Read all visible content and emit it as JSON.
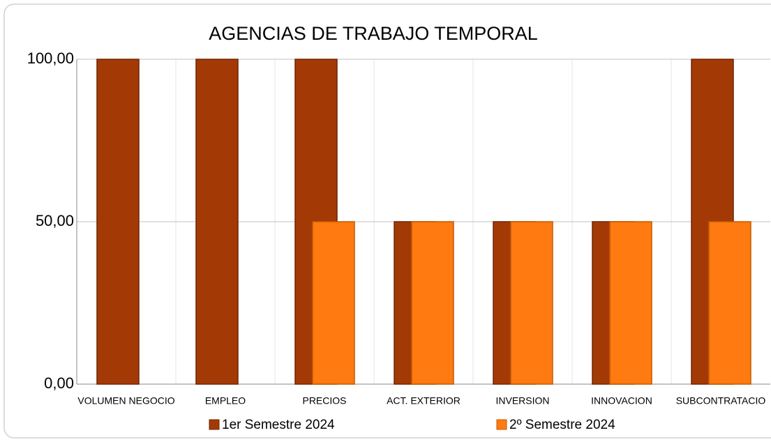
{
  "chart_data": {
    "type": "bar",
    "title": "AGENCIAS DE TRABAJO TEMPORAL",
    "categories": [
      "VOLUMEN NEGOCIO",
      "EMPLEO",
      "PRECIOS",
      "ACT. EXTERIOR",
      "INVERSION",
      "INNOVACION",
      "SUBCONTRATACIO"
    ],
    "series": [
      {
        "name": "1er Semestre 2024",
        "color": "#a33a06",
        "values": [
          100,
          100,
          100,
          50,
          50,
          50,
          100
        ]
      },
      {
        "name": "2º Semestre 2024",
        "color": "#ff7a10",
        "values": [
          0,
          0,
          50,
          50,
          50,
          50,
          50
        ]
      }
    ],
    "ylim": [
      0,
      100
    ],
    "yticks": [
      {
        "value": 0,
        "label": "0,00"
      },
      {
        "value": 50,
        "label": "50,00"
      },
      {
        "value": 100,
        "label": "100,00"
      }
    ],
    "grid": true,
    "legend": "bottom"
  }
}
